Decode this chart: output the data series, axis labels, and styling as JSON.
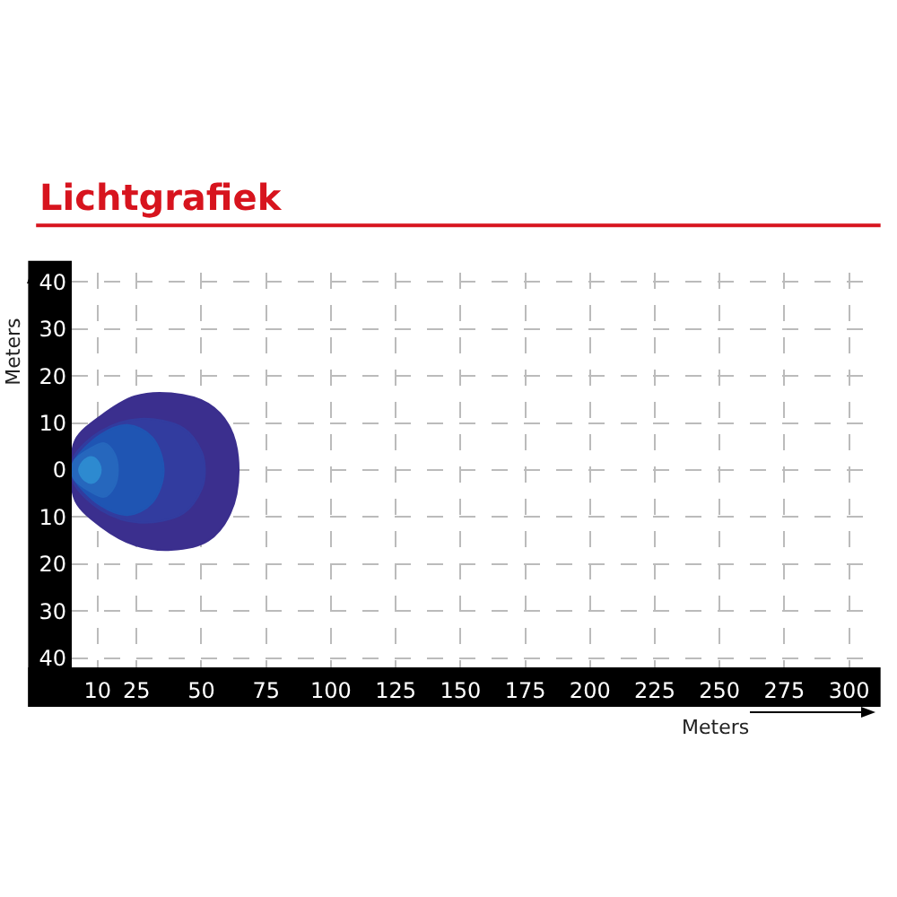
{
  "chart_data": {
    "type": "area",
    "title": "Lichtgrafiek",
    "xlabel": "Meters",
    "ylabel": "Meters",
    "xlim": [
      0,
      306
    ],
    "ylim": [
      -42,
      42
    ],
    "xticks": [
      10,
      25,
      50,
      75,
      100,
      125,
      150,
      175,
      200,
      225,
      250,
      275,
      300
    ],
    "yticks": [
      {
        "value": -40,
        "label": "40"
      },
      {
        "value": -30,
        "label": "30"
      },
      {
        "value": -20,
        "label": "20"
      },
      {
        "value": -10,
        "label": "10"
      },
      0,
      10,
      20,
      30,
      40
    ],
    "grid": true,
    "series": [
      {
        "color": "#3b2f8e",
        "x": [
          0,
          1.4,
          11.2,
          24.4,
          38.4,
          52.7,
          61.2,
          64.4,
          61.2,
          52.7,
          38.4,
          24.4,
          11.2,
          1.4,
          0
        ],
        "values": [
          0,
          6.4,
          11.5,
          15.7,
          16.3,
          14.1,
          8.9,
          0,
          -9.2,
          -15,
          -17,
          -16,
          -12,
          -6.6,
          0
        ]
      },
      {
        "color": "#323c9f",
        "x": [
          0,
          1,
          11.2,
          26.4,
          43.1,
          50.2,
          51.4,
          50.2,
          43.1,
          26.4,
          11.2,
          1,
          0
        ],
        "values": [
          0,
          3,
          8.3,
          10.9,
          8.9,
          3.8,
          0,
          -4,
          -9.2,
          -11.2,
          -8.5,
          -3,
          0
        ]
      },
      {
        "color": "#1f55b3",
        "x": [
          0,
          1,
          11,
          21.5,
          31,
          35.5,
          31,
          21.5,
          11,
          1,
          0
        ],
        "values": [
          0,
          2,
          7.5,
          9.6,
          7,
          0,
          -7,
          -9.6,
          -7.5,
          -2,
          0
        ]
      },
      {
        "color": "#2667bd",
        "x": [
          0,
          1,
          7,
          12.6,
          16.5,
          17.8,
          16.5,
          12.6,
          7,
          1,
          0
        ],
        "values": [
          0,
          2,
          4.5,
          5.7,
          3.5,
          0,
          -3.5,
          -5.7,
          -4.5,
          -2,
          0
        ]
      },
      {
        "color": "#2d8ad0",
        "x": [
          2.8,
          5,
          8.3,
          10.5,
          11.2,
          10.5,
          8.3,
          5,
          2.8
        ],
        "values": [
          0,
          2.2,
          2.7,
          1.5,
          0,
          -1.5,
          -2.7,
          -2.2,
          0
        ]
      }
    ]
  }
}
